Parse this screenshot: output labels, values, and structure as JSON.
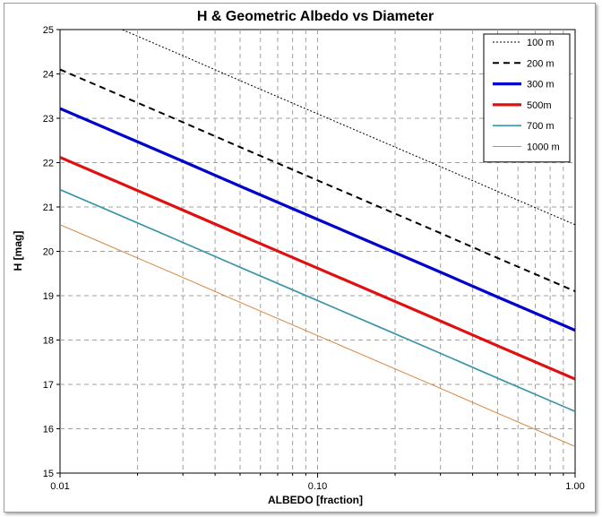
{
  "chart_data": {
    "type": "line",
    "title": "H & Geometric Albedo vs Diameter",
    "xlabel": "ALBEDO [fraction]",
    "ylabel": "H [mag]",
    "x_scale": "log",
    "xlim": [
      0.01,
      1.0
    ],
    "ylim": [
      15,
      25
    ],
    "x_ticks": [
      {
        "value": 0.01,
        "label": "0.01"
      },
      {
        "value": 0.1,
        "label": "0.10"
      },
      {
        "value": 1.0,
        "label": "1.00"
      }
    ],
    "y_ticks": [
      {
        "value": 15,
        "label": "15"
      },
      {
        "value": 16,
        "label": "16"
      },
      {
        "value": 17,
        "label": "17"
      },
      {
        "value": 18,
        "label": "18"
      },
      {
        "value": 19,
        "label": "19"
      },
      {
        "value": 20,
        "label": "20"
      },
      {
        "value": 21,
        "label": "21"
      },
      {
        "value": 22,
        "label": "22"
      },
      {
        "value": 23,
        "label": "23"
      },
      {
        "value": 24,
        "label": "24"
      },
      {
        "value": 25,
        "label": "25"
      }
    ],
    "grid": {
      "major": true,
      "minor_x": true,
      "style": "dashed",
      "color": "#a0a0a0"
    },
    "legend_position": "top-right",
    "x": [
      0.01,
      0.02,
      0.03,
      0.05,
      0.1,
      0.2,
      0.3,
      0.5,
      1.0
    ],
    "series": [
      {
        "name": "100 m",
        "color": "#000000",
        "style": "dotted-thin",
        "values": [
          25.6,
          24.85,
          24.41,
          23.85,
          23.1,
          22.35,
          21.91,
          21.35,
          20.6
        ]
      },
      {
        "name": "200 m",
        "color": "#000000",
        "style": "dashed",
        "values": [
          24.1,
          23.35,
          22.91,
          22.35,
          21.6,
          20.85,
          20.41,
          19.85,
          19.1
        ]
      },
      {
        "name": "300 m",
        "color": "#0000cc",
        "style": "solid-thick",
        "values": [
          23.22,
          22.47,
          22.03,
          21.47,
          20.72,
          19.97,
          19.53,
          18.97,
          18.22
        ]
      },
      {
        "name": "500m",
        "color": "#e01010",
        "style": "solid-thick",
        "values": [
          22.12,
          21.37,
          20.93,
          20.37,
          19.62,
          18.87,
          18.43,
          17.87,
          17.12
        ]
      },
      {
        "name": "700 m",
        "color": "#3a96a8",
        "style": "solid-medium",
        "values": [
          21.39,
          20.64,
          20.2,
          19.64,
          18.89,
          18.14,
          17.7,
          17.14,
          16.39
        ]
      },
      {
        "name": "1000 m",
        "color": "#d4863c",
        "style": "solid-thin",
        "values": [
          20.6,
          19.85,
          19.41,
          18.85,
          18.1,
          17.35,
          16.91,
          16.35,
          15.6
        ]
      }
    ]
  }
}
